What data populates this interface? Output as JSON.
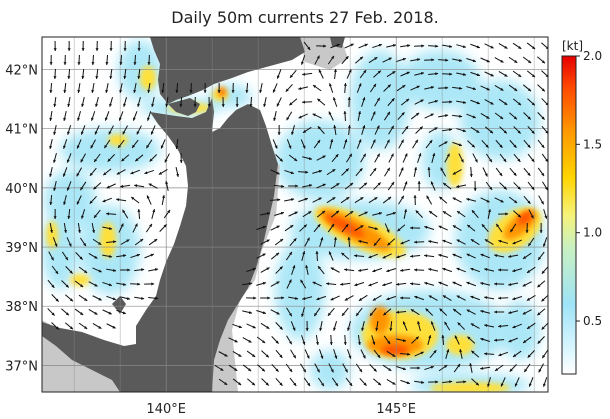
{
  "title": "Daily 50m currents 27 Feb. 2018.",
  "map": {
    "lon_range": [
      137.3,
      148.3
    ],
    "lat_range": [
      36.55,
      42.55
    ],
    "lat_ticks": [
      {
        "value": 42,
        "label": "42°N"
      },
      {
        "value": 41,
        "label": "41°N"
      },
      {
        "value": 40,
        "label": "40°N"
      },
      {
        "value": 39,
        "label": "39°N"
      },
      {
        "value": 38,
        "label": "38°N"
      },
      {
        "value": 37,
        "label": "37°N"
      }
    ],
    "lon_ticks": [
      {
        "value": 140,
        "label": "140°E"
      },
      {
        "value": 145,
        "label": "145°E"
      }
    ],
    "colors": {
      "land": "#5a5a5a",
      "shelf": "#c8c8c8",
      "ocean": "#ffffff",
      "grid": "#888888",
      "arrow": "#111111"
    }
  },
  "colorbar": {
    "unit": "[kt]",
    "ticks": [
      {
        "value": 2.0,
        "label": "2.0"
      },
      {
        "value": 1.5,
        "label": "1.5"
      },
      {
        "value": 1.0,
        "label": "1.0"
      },
      {
        "value": 0.5,
        "label": "0.5"
      }
    ],
    "range": [
      0.2,
      2.0
    ],
    "stops": [
      "#ffffff",
      "#bfeefc",
      "#7fd9f2",
      "#f5f07a",
      "#ffd200",
      "#ff9a00",
      "#ff4d00",
      "#e60000"
    ]
  }
}
